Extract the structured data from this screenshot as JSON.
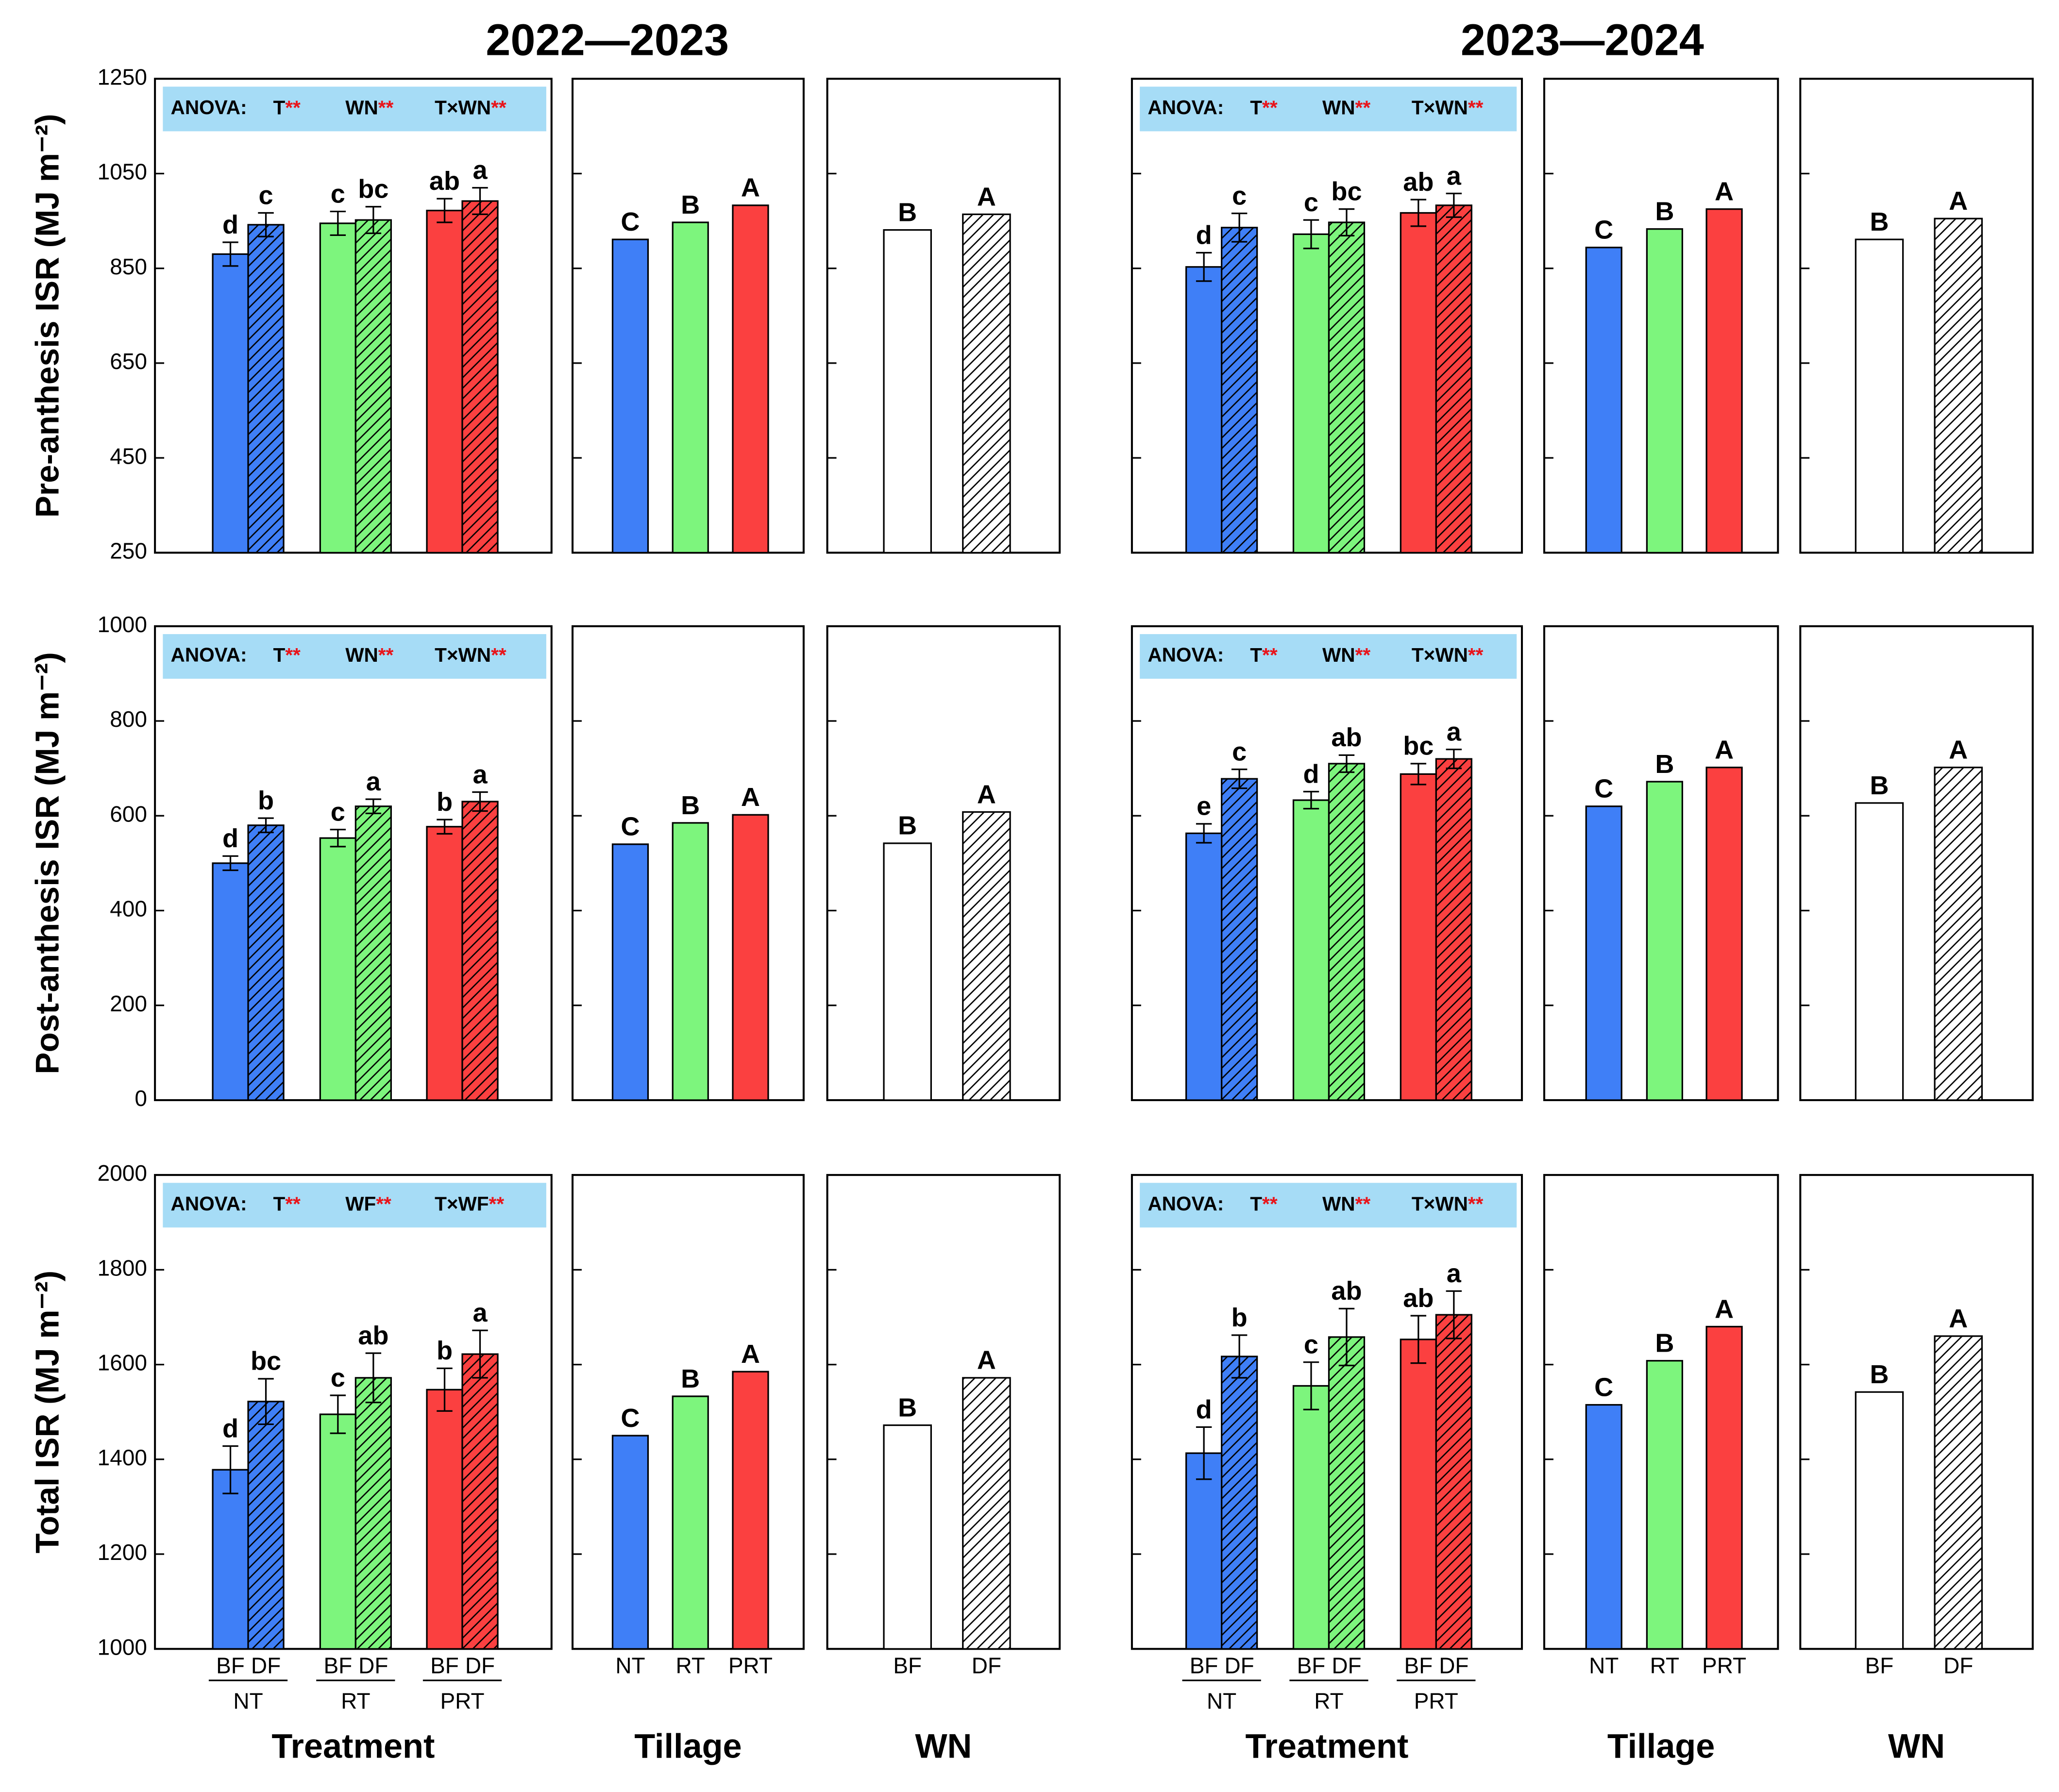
{
  "chart_data": [
    {
      "type": "bar",
      "title": "2022—2023",
      "y_label": "Pre-anthesis ISR (MJ m⁻²)",
      "show_tick_labels": true,
      "ylim": [
        250,
        1250
      ],
      "yticks": [
        250,
        450,
        650,
        850,
        1050,
        1250
      ],
      "anova": {
        "label": "ANOVA:",
        "terms": [
          {
            "name": "T",
            "stars": "**"
          },
          {
            "name": "WN",
            "stars": "**"
          },
          {
            "name": "T×WN",
            "stars": "**"
          }
        ]
      },
      "values": [
        880,
        942,
        945,
        952,
        972,
        992
      ],
      "errors": [
        25,
        25,
        25,
        28,
        25,
        28
      ],
      "letters": [
        "d",
        "c",
        "c",
        "bc",
        "ab",
        "a"
      ],
      "colors": [
        "#3f7ff7",
        "#3f7ff7",
        "#7df57d",
        "#7df57d",
        "#fb4040",
        "#fb4040"
      ],
      "hatched": [
        false,
        true,
        false,
        true,
        false,
        true
      ]
    },
    {
      "type": "bar",
      "show_tick_labels": false,
      "ylim": [
        250,
        1250
      ],
      "yticks": [
        250,
        450,
        650,
        850,
        1050,
        1250
      ],
      "values": [
        911,
        947,
        983
      ],
      "letters": [
        "C",
        "B",
        "A"
      ],
      "colors": [
        "#3f7ff7",
        "#7df57d",
        "#fb4040"
      ],
      "hatched": [
        false,
        false,
        false
      ]
    },
    {
      "type": "bar",
      "show_tick_labels": false,
      "ylim": [
        250,
        1250
      ],
      "yticks": [
        250,
        450,
        650,
        850,
        1050,
        1250
      ],
      "values": [
        931,
        964
      ],
      "letters": [
        "B",
        "A"
      ],
      "colors": [
        "#ffffff",
        "#ffffff"
      ],
      "hatched": [
        false,
        true
      ]
    },
    {
      "type": "bar",
      "title": "2023—2024",
      "show_tick_labels": false,
      "ylim": [
        250,
        1250
      ],
      "yticks": [
        250,
        450,
        650,
        850,
        1050,
        1250
      ],
      "anova": {
        "label": "ANOVA:",
        "terms": [
          {
            "name": "T",
            "stars": "**"
          },
          {
            "name": "WN",
            "stars": "**"
          },
          {
            "name": "T×WN",
            "stars": "**"
          }
        ]
      },
      "values": [
        853,
        936,
        922,
        947,
        967,
        983
      ],
      "errors": [
        30,
        30,
        30,
        28,
        28,
        25
      ],
      "letters": [
        "d",
        "c",
        "c",
        "bc",
        "ab",
        "a"
      ],
      "colors": [
        "#3f7ff7",
        "#3f7ff7",
        "#7df57d",
        "#7df57d",
        "#fb4040",
        "#fb4040"
      ],
      "hatched": [
        false,
        true,
        false,
        true,
        false,
        true
      ]
    },
    {
      "type": "bar",
      "show_tick_labels": false,
      "ylim": [
        250,
        1250
      ],
      "yticks": [
        250,
        450,
        650,
        850,
        1050,
        1250
      ],
      "values": [
        894,
        933,
        975
      ],
      "letters": [
        "C",
        "B",
        "A"
      ],
      "colors": [
        "#3f7ff7",
        "#7df57d",
        "#fb4040"
      ],
      "hatched": [
        false,
        false,
        false
      ]
    },
    {
      "type": "bar",
      "show_tick_labels": false,
      "ylim": [
        250,
        1250
      ],
      "yticks": [
        250,
        450,
        650,
        850,
        1050,
        1250
      ],
      "values": [
        911,
        955
      ],
      "letters": [
        "B",
        "A"
      ],
      "colors": [
        "#ffffff",
        "#ffffff"
      ],
      "hatched": [
        false,
        true
      ]
    },
    {
      "type": "bar",
      "y_label": "Post-anthesis ISR (MJ m⁻²)",
      "show_tick_labels": true,
      "ylim": [
        0,
        1000
      ],
      "yticks": [
        0,
        200,
        400,
        600,
        800,
        1000
      ],
      "anova": {
        "label": "ANOVA:",
        "terms": [
          {
            "name": "T",
            "stars": "**"
          },
          {
            "name": "WN",
            "stars": "**"
          },
          {
            "name": "T×WN",
            "stars": "**"
          }
        ]
      },
      "values": [
        500,
        580,
        553,
        620,
        577,
        630
      ],
      "errors": [
        15,
        15,
        18,
        15,
        15,
        20
      ],
      "letters": [
        "d",
        "b",
        "c",
        "a",
        "b",
        "a"
      ],
      "colors": [
        "#3f7ff7",
        "#3f7ff7",
        "#7df57d",
        "#7df57d",
        "#fb4040",
        "#fb4040"
      ],
      "hatched": [
        false,
        true,
        false,
        true,
        false,
        true
      ]
    },
    {
      "type": "bar",
      "show_tick_labels": false,
      "ylim": [
        0,
        1000
      ],
      "yticks": [
        0,
        200,
        400,
        600,
        800,
        1000
      ],
      "values": [
        540,
        585,
        602
      ],
      "letters": [
        "C",
        "B",
        "A"
      ],
      "colors": [
        "#3f7ff7",
        "#7df57d",
        "#fb4040"
      ],
      "hatched": [
        false,
        false,
        false
      ]
    },
    {
      "type": "bar",
      "show_tick_labels": false,
      "ylim": [
        0,
        1000
      ],
      "yticks": [
        0,
        200,
        400,
        600,
        800,
        1000
      ],
      "values": [
        542,
        608
      ],
      "letters": [
        "B",
        "A"
      ],
      "colors": [
        "#ffffff",
        "#ffffff"
      ],
      "hatched": [
        false,
        true
      ]
    },
    {
      "type": "bar",
      "show_tick_labels": false,
      "ylim": [
        0,
        1000
      ],
      "yticks": [
        0,
        200,
        400,
        600,
        800,
        1000
      ],
      "anova": {
        "label": "ANOVA:",
        "terms": [
          {
            "name": "T",
            "stars": "**"
          },
          {
            "name": "WN",
            "stars": "**"
          },
          {
            "name": "T×WN",
            "stars": "**"
          }
        ]
      },
      "values": [
        563,
        678,
        633,
        710,
        688,
        720
      ],
      "errors": [
        20,
        20,
        18,
        18,
        22,
        20
      ],
      "letters": [
        "e",
        "c",
        "d",
        "ab",
        "bc",
        "a"
      ],
      "colors": [
        "#3f7ff7",
        "#3f7ff7",
        "#7df57d",
        "#7df57d",
        "#fb4040",
        "#fb4040"
      ],
      "hatched": [
        false,
        true,
        false,
        true,
        false,
        true
      ]
    },
    {
      "type": "bar",
      "show_tick_labels": false,
      "ylim": [
        0,
        1000
      ],
      "yticks": [
        0,
        200,
        400,
        600,
        800,
        1000
      ],
      "values": [
        620,
        672,
        702
      ],
      "letters": [
        "C",
        "B",
        "A"
      ],
      "colors": [
        "#3f7ff7",
        "#7df57d",
        "#fb4040"
      ],
      "hatched": [
        false,
        false,
        false
      ]
    },
    {
      "type": "bar",
      "show_tick_labels": false,
      "ylim": [
        0,
        1000
      ],
      "yticks": [
        0,
        200,
        400,
        600,
        800,
        1000
      ],
      "values": [
        627,
        702
      ],
      "letters": [
        "B",
        "A"
      ],
      "colors": [
        "#ffffff",
        "#ffffff"
      ],
      "hatched": [
        false,
        true
      ]
    },
    {
      "type": "bar",
      "y_label": "Total  ISR (MJ m⁻²)",
      "x_label": "Treatment",
      "show_tick_labels": true,
      "ylim": [
        1000,
        2000
      ],
      "yticks": [
        1000,
        1200,
        1400,
        1600,
        1800,
        2000
      ],
      "anova": {
        "label": "ANOVA:",
        "terms": [
          {
            "name": "T",
            "stars": "**"
          },
          {
            "name": "WF",
            "stars": "**"
          },
          {
            "name": "T×WF",
            "stars": "**"
          }
        ]
      },
      "categories": [
        "BF",
        "DF",
        "BF",
        "DF",
        "BF",
        "DF"
      ],
      "groups": [
        "NT",
        "RT",
        "PRT"
      ],
      "values": [
        1378,
        1522,
        1495,
        1572,
        1547,
        1622
      ],
      "errors": [
        50,
        48,
        40,
        52,
        45,
        50
      ],
      "letters": [
        "d",
        "bc",
        "c",
        "ab",
        "b",
        "a"
      ],
      "colors": [
        "#3f7ff7",
        "#3f7ff7",
        "#7df57d",
        "#7df57d",
        "#fb4040",
        "#fb4040"
      ],
      "hatched": [
        false,
        true,
        false,
        true,
        false,
        true
      ]
    },
    {
      "type": "bar",
      "x_label": "Tillage",
      "show_tick_labels": false,
      "ylim": [
        1000,
        2000
      ],
      "yticks": [
        1000,
        1200,
        1400,
        1600,
        1800,
        2000
      ],
      "categories": [
        "NT",
        "RT",
        "PRT"
      ],
      "values": [
        1450,
        1533,
        1585
      ],
      "letters": [
        "C",
        "B",
        "A"
      ],
      "colors": [
        "#3f7ff7",
        "#7df57d",
        "#fb4040"
      ],
      "hatched": [
        false,
        false,
        false
      ]
    },
    {
      "type": "bar",
      "x_label": "WN",
      "show_tick_labels": false,
      "ylim": [
        1000,
        2000
      ],
      "yticks": [
        1000,
        1200,
        1400,
        1600,
        1800,
        2000
      ],
      "categories": [
        "BF",
        "DF"
      ],
      "values": [
        1472,
        1572
      ],
      "letters": [
        "B",
        "A"
      ],
      "colors": [
        "#ffffff",
        "#ffffff"
      ],
      "hatched": [
        false,
        true
      ]
    },
    {
      "type": "bar",
      "x_label": "Treatment",
      "show_tick_labels": false,
      "ylim": [
        1000,
        2000
      ],
      "yticks": [
        1000,
        1200,
        1400,
        1600,
        1800,
        2000
      ],
      "anova": {
        "label": "ANOVA:",
        "terms": [
          {
            "name": "T",
            "stars": "**"
          },
          {
            "name": "WN",
            "stars": "**"
          },
          {
            "name": "T×WN",
            "stars": "**"
          }
        ]
      },
      "categories": [
        "BF",
        "DF",
        "BF",
        "DF",
        "BF",
        "DF"
      ],
      "groups": [
        "NT",
        "RT",
        "PRT"
      ],
      "values": [
        1413,
        1617,
        1555,
        1658,
        1653,
        1705
      ],
      "errors": [
        55,
        45,
        50,
        60,
        50,
        50
      ],
      "letters": [
        "d",
        "b",
        "c",
        "ab",
        "ab",
        "a"
      ],
      "colors": [
        "#3f7ff7",
        "#3f7ff7",
        "#7df57d",
        "#7df57d",
        "#fb4040",
        "#fb4040"
      ],
      "hatched": [
        false,
        true,
        false,
        true,
        false,
        true
      ]
    },
    {
      "type": "bar",
      "x_label": "Tillage",
      "show_tick_labels": false,
      "ylim": [
        1000,
        2000
      ],
      "yticks": [
        1000,
        1200,
        1400,
        1600,
        1800,
        2000
      ],
      "categories": [
        "NT",
        "RT",
        "PRT"
      ],
      "values": [
        1515,
        1608,
        1680
      ],
      "letters": [
        "C",
        "B",
        "A"
      ],
      "colors": [
        "#3f7ff7",
        "#7df57d",
        "#fb4040"
      ],
      "hatched": [
        false,
        false,
        false
      ]
    },
    {
      "type": "bar",
      "x_label": "WN",
      "show_tick_labels": false,
      "ylim": [
        1000,
        2000
      ],
      "yticks": [
        1000,
        1200,
        1400,
        1600,
        1800,
        2000
      ],
      "categories": [
        "BF",
        "DF"
      ],
      "values": [
        1542,
        1660
      ],
      "letters": [
        "B",
        "A"
      ],
      "colors": [
        "#ffffff",
        "#ffffff"
      ],
      "hatched": [
        false,
        true
      ]
    }
  ]
}
